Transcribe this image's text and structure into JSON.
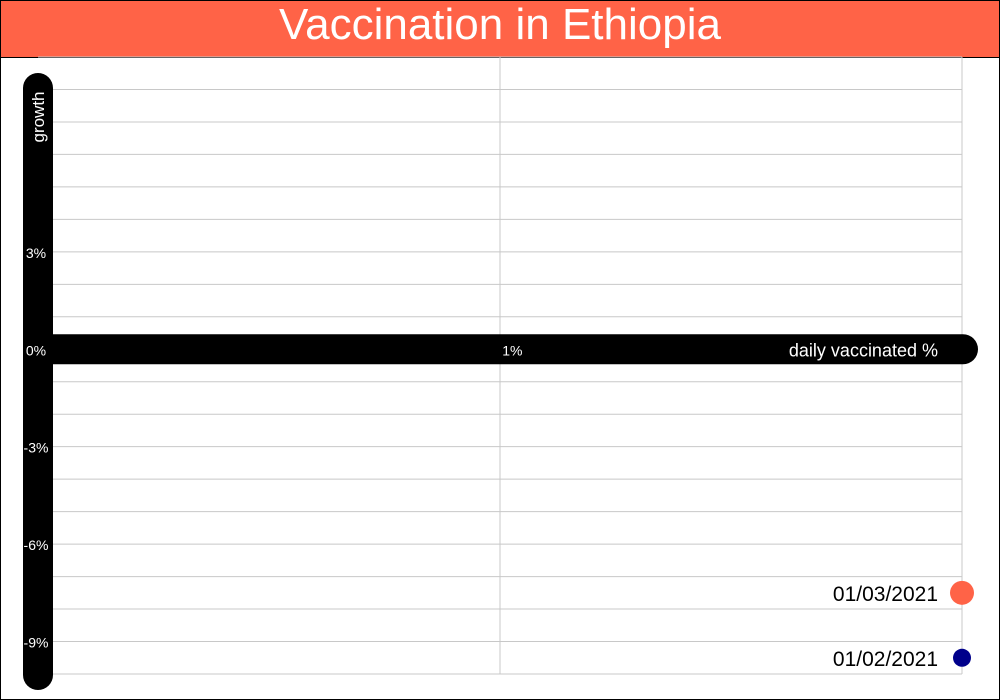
{
  "title": "Vaccination in Ethiopia",
  "colors": {
    "title_bg": "#ff6347",
    "axis": "#000000",
    "grid": "#c8c8c8",
    "point_1": "#ff6347",
    "point_2": "#00008b"
  },
  "chart_data": {
    "type": "scatter",
    "title": "Vaccination in Ethiopia",
    "xlabel": "daily vaccinated %",
    "ylabel": "growth",
    "xlim": [
      0,
      1.9
    ],
    "ylim": [
      -10,
      9
    ],
    "x_ticks": [
      {
        "value": 1,
        "label": "1%"
      }
    ],
    "y_ticks": [
      {
        "value": 3,
        "label": "3%"
      },
      {
        "value": 0,
        "label": "0%"
      },
      {
        "value": -3,
        "label": "-3%"
      },
      {
        "value": -6,
        "label": "-6%"
      },
      {
        "value": -9,
        "label": "-9%"
      }
    ],
    "grid": true,
    "points": [
      {
        "label": "01/03/2021",
        "x": 1.9,
        "y": -7.5,
        "color": "#ff6347",
        "size": "large"
      },
      {
        "label": "01/02/2021",
        "x": 1.9,
        "y": -9.5,
        "color": "#00008b",
        "size": "small"
      }
    ]
  }
}
